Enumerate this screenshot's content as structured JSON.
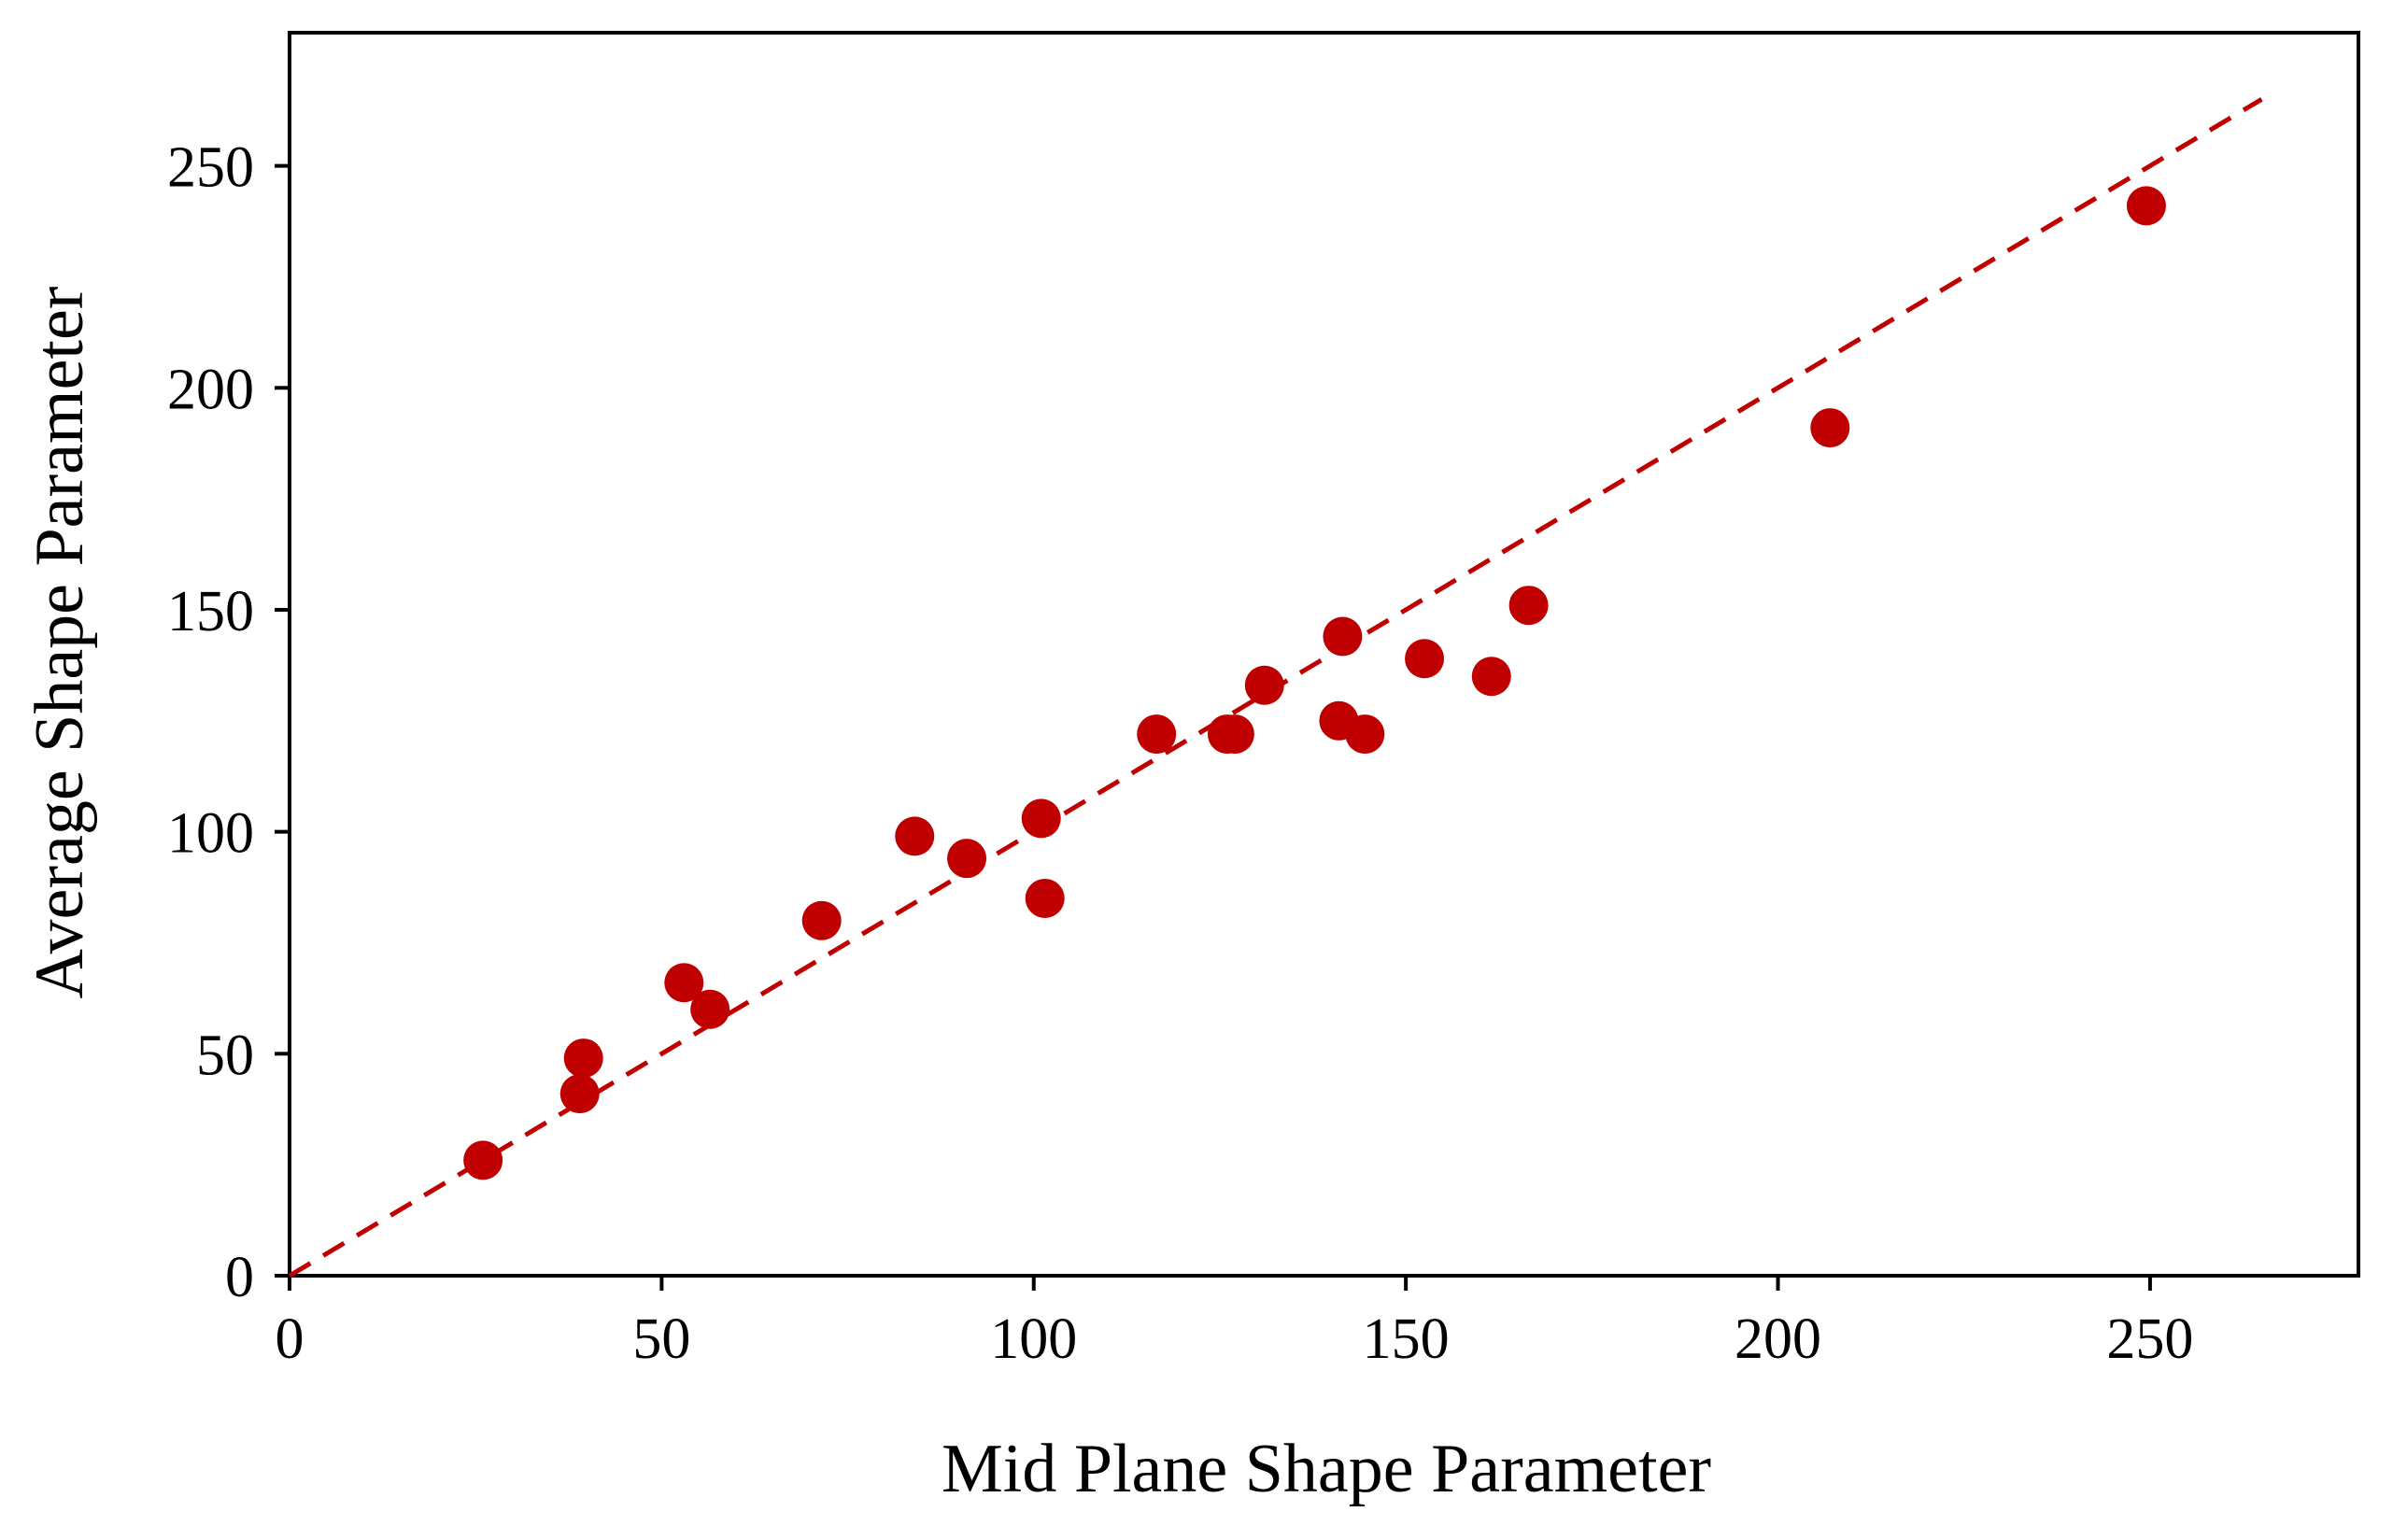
{
  "colors": {
    "points": "#C00000",
    "reference_line": "#C00000",
    "axes": "#000000",
    "background": "#FFFFFF"
  },
  "chart_data": {
    "type": "scatter",
    "title": "",
    "xlabel": "Mid Plane Shape Parameter",
    "ylabel": "Average Shape Parameter",
    "xlim": [
      0,
      278
    ],
    "ylim": [
      0,
      280
    ],
    "xticks": [
      0,
      50,
      100,
      150,
      200,
      250
    ],
    "yticks": [
      0,
      50,
      100,
      150,
      200,
      250
    ],
    "grid": false,
    "legend": "none",
    "series": [
      {
        "points": [
          {
            "x": 26,
            "y": 26
          },
          {
            "x": 39,
            "y": 41
          },
          {
            "x": 39.5,
            "y": 49
          },
          {
            "x": 53,
            "y": 66
          },
          {
            "x": 56.5,
            "y": 60
          },
          {
            "x": 71.5,
            "y": 80
          },
          {
            "x": 84,
            "y": 99
          },
          {
            "x": 91,
            "y": 94
          },
          {
            "x": 101,
            "y": 103
          },
          {
            "x": 101.5,
            "y": 85
          },
          {
            "x": 116.5,
            "y": 122
          },
          {
            "x": 126,
            "y": 122
          },
          {
            "x": 127,
            "y": 122
          },
          {
            "x": 131,
            "y": 133
          },
          {
            "x": 141,
            "y": 125
          },
          {
            "x": 141.5,
            "y": 144
          },
          {
            "x": 144.5,
            "y": 122
          },
          {
            "x": 152.5,
            "y": 139
          },
          {
            "x": 161.5,
            "y": 135
          },
          {
            "x": 166.5,
            "y": 151
          },
          {
            "x": 207,
            "y": 191
          },
          {
            "x": 249.5,
            "y": 241
          }
        ]
      }
    ],
    "reference_line": {
      "style": "dashed",
      "from": {
        "x": 0,
        "y": 0
      },
      "to": {
        "x": 265,
        "y": 265
      }
    }
  }
}
